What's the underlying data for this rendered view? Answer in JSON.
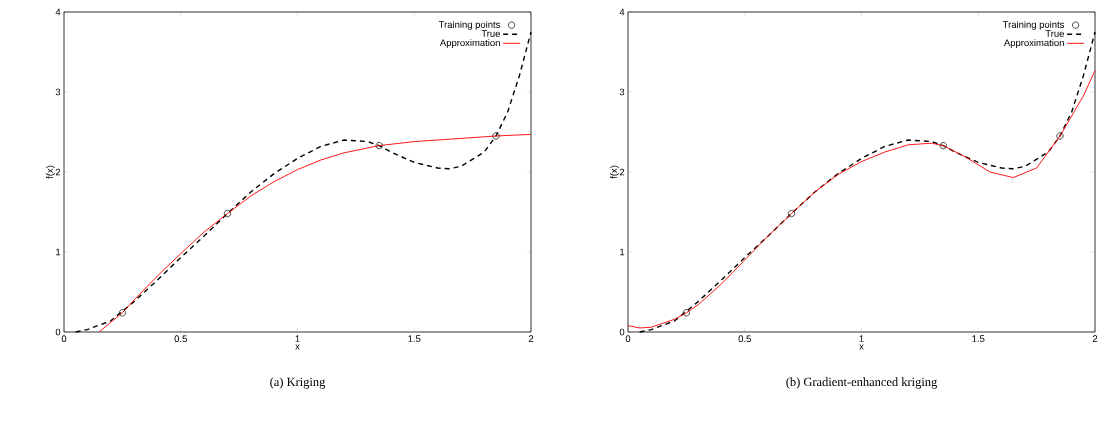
{
  "chart_data": [
    {
      "type": "line",
      "title": "(a) Kriging",
      "xlabel": "x",
      "ylabel": "f(x)",
      "xlim": [
        0,
        2
      ],
      "ylim": [
        0,
        4
      ],
      "xticks": [
        0,
        0.5,
        1,
        1.5,
        2
      ],
      "yticks": [
        0,
        1,
        2,
        3,
        4
      ],
      "legend": "top right",
      "grid": false,
      "series": [
        {
          "name": "Training points",
          "type": "scatter",
          "color": "#000000",
          "marker": "circle",
          "x": [
            0.25,
            0.7,
            1.35,
            1.85
          ],
          "values": [
            0.24,
            1.48,
            2.33,
            2.45
          ]
        },
        {
          "name": "True",
          "type": "line",
          "color": "#000000",
          "line_style": "dashed",
          "marker": "none",
          "x": [
            0.05,
            0.1,
            0.2,
            0.3,
            0.4,
            0.5,
            0.6,
            0.7,
            0.8,
            0.9,
            1.0,
            1.1,
            1.2,
            1.3,
            1.35,
            1.4,
            1.5,
            1.6,
            1.65,
            1.7,
            1.8,
            1.85,
            1.9,
            1.95,
            2.0
          ],
          "values": [
            0.0,
            0.03,
            0.14,
            0.38,
            0.65,
            0.93,
            1.2,
            1.48,
            1.75,
            1.98,
            2.17,
            2.32,
            2.4,
            2.38,
            2.33,
            2.25,
            2.12,
            2.05,
            2.04,
            2.07,
            2.25,
            2.45,
            2.75,
            3.2,
            3.75
          ]
        },
        {
          "name": "Approximation",
          "type": "line",
          "color": "#ff0000",
          "line_style": "solid",
          "marker": "none",
          "x": [
            0.15,
            0.25,
            0.3,
            0.4,
            0.5,
            0.6,
            0.7,
            0.8,
            0.9,
            1.0,
            1.1,
            1.2,
            1.35,
            1.5,
            1.7,
            1.85,
            2.0
          ],
          "values": [
            0.0,
            0.24,
            0.4,
            0.7,
            0.98,
            1.25,
            1.48,
            1.7,
            1.88,
            2.03,
            2.15,
            2.24,
            2.33,
            2.38,
            2.42,
            2.45,
            2.47
          ]
        }
      ]
    },
    {
      "type": "line",
      "title": "(b) Gradient-enhanced kriging",
      "xlabel": "x",
      "ylabel": "f(x)",
      "xlim": [
        0,
        2
      ],
      "ylim": [
        0,
        4
      ],
      "xticks": [
        0,
        0.5,
        1,
        1.5,
        2
      ],
      "yticks": [
        0,
        1,
        2,
        3,
        4
      ],
      "legend": "top right",
      "grid": false,
      "series": [
        {
          "name": "Training points",
          "type": "scatter",
          "color": "#000000",
          "marker": "circle",
          "x": [
            0.25,
            0.7,
            1.35,
            1.85
          ],
          "values": [
            0.24,
            1.48,
            2.33,
            2.45
          ]
        },
        {
          "name": "True",
          "type": "line",
          "color": "#000000",
          "line_style": "dashed",
          "marker": "none",
          "x": [
            0.05,
            0.1,
            0.2,
            0.3,
            0.4,
            0.5,
            0.6,
            0.7,
            0.8,
            0.9,
            1.0,
            1.1,
            1.2,
            1.3,
            1.35,
            1.4,
            1.5,
            1.6,
            1.65,
            1.7,
            1.8,
            1.85,
            1.9,
            1.95,
            2.0
          ],
          "values": [
            0.0,
            0.03,
            0.14,
            0.38,
            0.65,
            0.93,
            1.2,
            1.48,
            1.75,
            1.98,
            2.17,
            2.32,
            2.4,
            2.38,
            2.33,
            2.25,
            2.12,
            2.05,
            2.04,
            2.07,
            2.25,
            2.45,
            2.75,
            3.2,
            3.75
          ]
        },
        {
          "name": "Approximation",
          "type": "line",
          "color": "#ff0000",
          "line_style": "solid",
          "marker": "none",
          "x": [
            0.0,
            0.05,
            0.1,
            0.2,
            0.25,
            0.3,
            0.4,
            0.5,
            0.6,
            0.7,
            0.8,
            0.9,
            1.0,
            1.1,
            1.2,
            1.3,
            1.35,
            1.45,
            1.55,
            1.65,
            1.75,
            1.85,
            1.95,
            2.0
          ],
          "values": [
            0.08,
            0.05,
            0.06,
            0.16,
            0.24,
            0.34,
            0.6,
            0.9,
            1.2,
            1.48,
            1.75,
            1.97,
            2.13,
            2.25,
            2.34,
            2.36,
            2.33,
            2.18,
            2.0,
            1.93,
            2.05,
            2.45,
            2.95,
            3.27
          ]
        }
      ]
    }
  ]
}
